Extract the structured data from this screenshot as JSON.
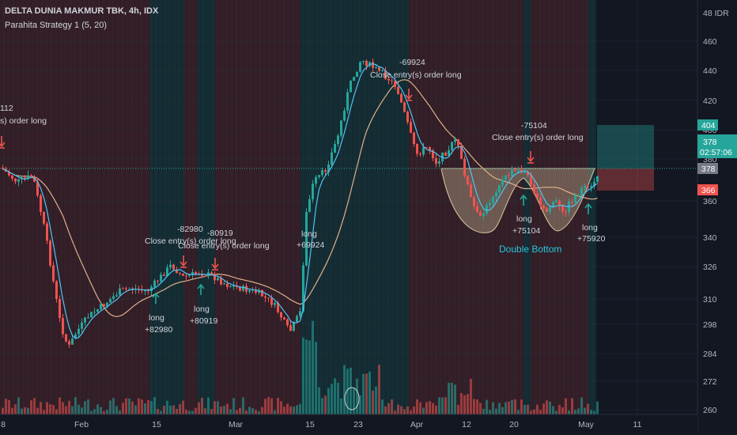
{
  "header": {
    "symbol_line": "DELTA DUNIA MAKMUR TBK, 4h, IDX",
    "strategy_line": "Parahita Strategy 1 (5, 20)"
  },
  "price_axis": {
    "currency": "48 IDR",
    "ticks": [
      "460",
      "440",
      "420",
      "400",
      "380",
      "360",
      "340",
      "326",
      "310",
      "298",
      "284",
      "272",
      "260"
    ]
  },
  "price_tags": {
    "target": {
      "value": "404",
      "color": "#26a69a"
    },
    "current": {
      "value": "378",
      "countdown": "02:57:06",
      "color": "#26a69a"
    },
    "entry": {
      "value": "378",
      "color": "#787b86"
    },
    "stop": {
      "value": "366",
      "color": "#ef5350"
    }
  },
  "time_axis": {
    "labels": [
      "8",
      "Feb",
      "15",
      "Mar",
      "15",
      "23",
      "Apr",
      "12",
      "20",
      "May",
      "11"
    ]
  },
  "annotations": {
    "left_cut_value": "112",
    "left_cut_text": "s) order long",
    "trade1_close_value": "-82980",
    "trade1_close_text": "Close entry(s) order long",
    "trade1_long": "long",
    "trade1_profit": "+82980",
    "trade2_close_value": "-80919",
    "trade2_close_text": "Close entry(s) order long",
    "trade2_long": "long",
    "trade2_profit": "+80919",
    "trade3_long": "long",
    "trade3_profit": "+69924",
    "trade3_close_value": "-69924",
    "trade3_close_text": "Close entry(s) order long",
    "trade4_close_value": "-75104",
    "trade4_close_text": "Close entry(s) order long",
    "trade4_long": "long",
    "trade4_profit": "+75104",
    "trade5_long": "long",
    "trade5_profit": "+75920",
    "pattern_label": "Double Bottom"
  },
  "colors": {
    "up": "#26a69a",
    "down": "#ef5350",
    "fast_ma": "#4fc3f7",
    "slow_ma": "#e0b08a",
    "pattern": "#d9c9a0",
    "pattern_text": "#26c6da",
    "arrow_long": "#26a69a",
    "arrow_close": "#ef5350"
  }
}
